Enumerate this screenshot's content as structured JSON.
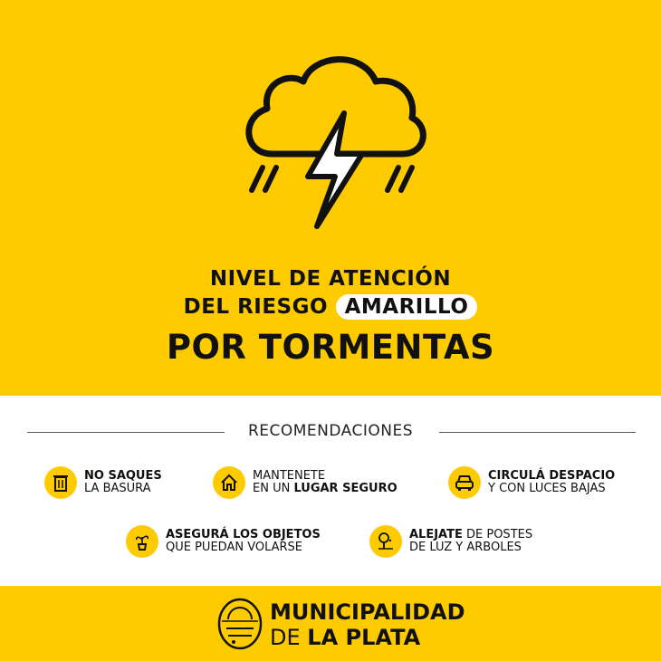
{
  "header": {
    "line1": "NIVEL DE ATENCIÓN",
    "line2_prefix": "DEL RIESGO",
    "line2_badge": "AMARILLO",
    "line3": "POR TORMENTAS",
    "icon": "storm-cloud-lightning-icon"
  },
  "recommendations": {
    "title": "RECOMENDACIONES",
    "items": [
      {
        "icon": "trash-can-icon",
        "bold1": "NO SAQUES",
        "text1": "",
        "text2": "LA BASURA",
        "bold2": ""
      },
      {
        "icon": "house-icon",
        "bold1": "",
        "text1": "MANTENETE",
        "text2": "EN UN ",
        "bold2": "LUGAR SEGURO"
      },
      {
        "icon": "car-icon",
        "bold1": "CIRCULÁ DESPACIO",
        "text1": "",
        "text2": "Y CON LUCES BAJAS",
        "bold2": ""
      },
      {
        "icon": "potted-plant-icon",
        "bold1": "ASEGURÁ LOS OBJETOS",
        "text1": "",
        "text2": "QUE PUEDAN VOLARSE",
        "bold2": ""
      },
      {
        "icon": "tree-icon",
        "bold1": "ALEJATE",
        "text1": " DE POSTES",
        "text2": "DE LUZ Y ARBOLES",
        "bold2": ""
      }
    ]
  },
  "footer": {
    "line1": "MUNICIPALIDAD",
    "line2_regular": "DE ",
    "line2_bold": "LA PLATA",
    "logo": "municipal-seal-logo"
  },
  "colors": {
    "yellow": "#FECB00",
    "text": "#111111"
  }
}
